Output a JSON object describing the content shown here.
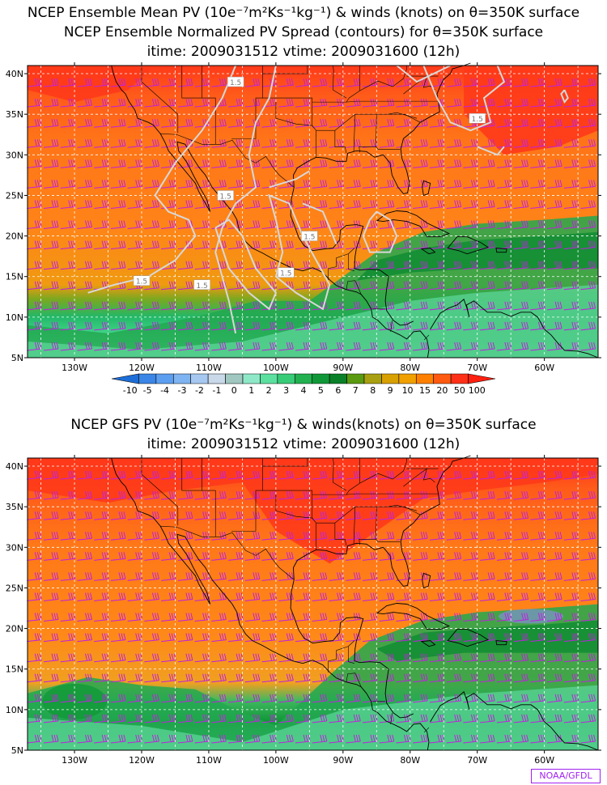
{
  "top_panel": {
    "title_lines": [
      "NCEP Ensemble Mean PV (10e⁻⁷m²Ks⁻¹kg⁻¹) & winds (knots) on θ=350K surface",
      "NCEP Ensemble Normalized PV Spread (contours) for θ=350K surface",
      "itime: 2009031512    vtime: 2009031600 (12h)"
    ],
    "contour_labels": [
      "1.5",
      "1.5",
      "1.5",
      "1.5",
      "1.5",
      "1.5",
      "1.5",
      "1.5"
    ]
  },
  "bottom_panel": {
    "title_lines": [
      "NCEP GFS PV (10e⁻⁷m²Ks⁻¹kg⁻¹) & winds(knots) on θ=350K surface",
      "itime: 2009031512    vtime: 2009031600 (12h)"
    ]
  },
  "lat_labels": [
    "40N",
    "35N",
    "30N",
    "25N",
    "20N",
    "15N",
    "10N",
    "5N"
  ],
  "lon_labels": [
    "130W",
    "120W",
    "110W",
    "100W",
    "90W",
    "80W",
    "70W",
    "60W"
  ],
  "colorbar": {
    "labels": [
      "-10",
      "-5",
      "-4",
      "-3",
      "-2",
      "-1",
      "0",
      "1",
      "2",
      "3",
      "4",
      "5",
      "6",
      "7",
      "8",
      "9",
      "10",
      "15",
      "20",
      "50",
      "100"
    ],
    "colors": [
      "#1e6ed8",
      "#3b86e6",
      "#5c9ef0",
      "#7fb4f2",
      "#a6c8f0",
      "#c9d9ea",
      "#a0c8c0",
      "#8ee8c8",
      "#5ce0a0",
      "#38cc78",
      "#22b050",
      "#109838",
      "#0a8028",
      "#5a9a10",
      "#a8a010",
      "#d8a000",
      "#f0a000",
      "#ff8000",
      "#ff5a10",
      "#ff3018",
      "#ff2010"
    ]
  },
  "colors": {
    "wind_barbs": "#c020e0",
    "coastline": "#000000",
    "spread_contour": "#d8d8d8",
    "grid": "#ffffff"
  },
  "credit": "NOAA/GFDL"
}
